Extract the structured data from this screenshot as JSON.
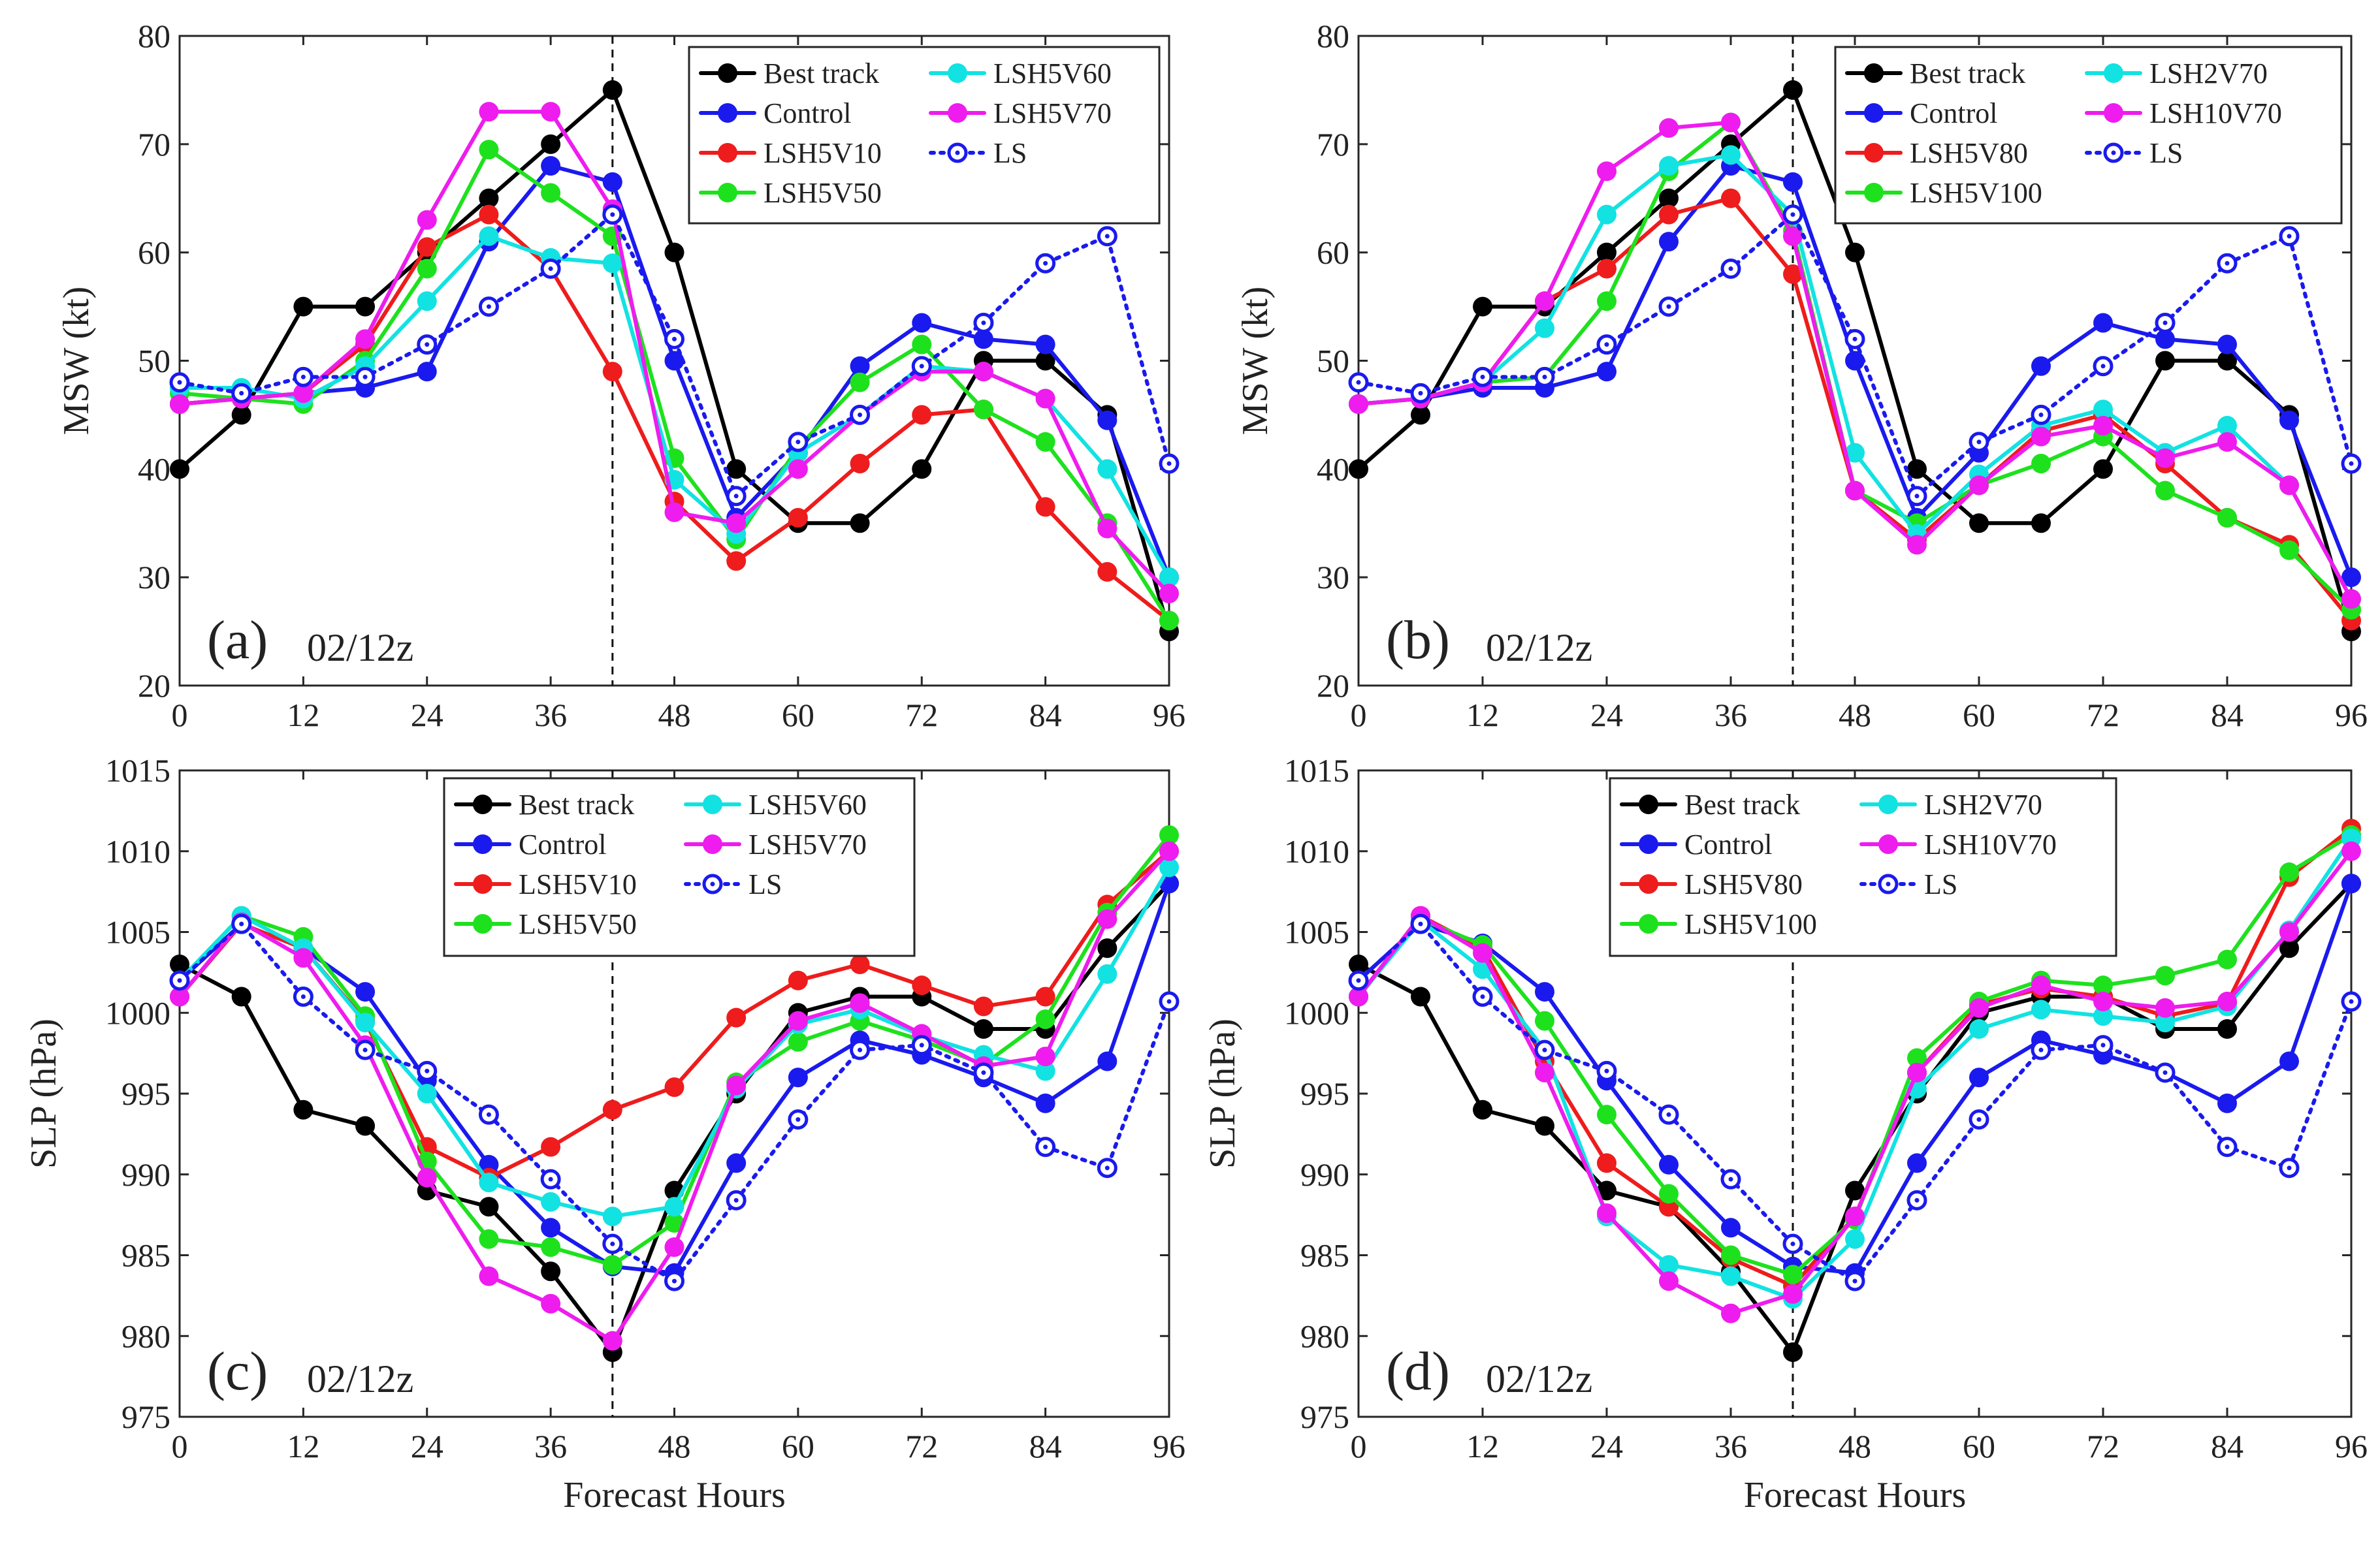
{
  "figure": {
    "xlabel": "Forecast Hours"
  },
  "chart_data": [
    {
      "type": "line",
      "id": "a",
      "panel_label": "(a)",
      "date_label": "02/12z",
      "ylabel": "MSW (kt)",
      "xlim": [
        0,
        96
      ],
      "ylim": [
        20,
        80
      ],
      "yticks": [
        20,
        30,
        40,
        50,
        60,
        70,
        80
      ],
      "xticks": [
        0,
        12,
        24,
        36,
        48,
        60,
        72,
        84,
        96
      ],
      "vline": 42,
      "legend_position": "top-right",
      "grid": false,
      "x": [
        0,
        6,
        12,
        18,
        24,
        30,
        36,
        42,
        48,
        54,
        60,
        66,
        72,
        78,
        84,
        90,
        96
      ],
      "series": [
        {
          "name": "Best track",
          "color": "#000000",
          "style": "solid",
          "values": [
            40,
            45,
            55,
            55,
            60,
            65,
            70,
            75,
            60,
            40,
            35,
            35,
            40,
            50,
            50,
            45,
            25
          ]
        },
        {
          "name": "Control",
          "color": "#1a1aee",
          "style": "solid",
          "values": [
            46,
            46.5,
            47,
            47.5,
            49,
            61,
            68,
            66.5,
            50,
            35.5,
            41.5,
            49.5,
            53.5,
            52,
            51.5,
            44.5,
            30
          ]
        },
        {
          "name": "LSH5V10",
          "color": "#ee1c1c",
          "style": "solid",
          "values": [
            46,
            46.5,
            47,
            51.5,
            60.5,
            63.5,
            58.5,
            49,
            37,
            31.5,
            35.5,
            40.5,
            45,
            45.5,
            36.5,
            30.5,
            26
          ]
        },
        {
          "name": "LSH5V50",
          "color": "#1ee11e",
          "style": "solid",
          "values": [
            47,
            46.5,
            46,
            50,
            58.5,
            69.5,
            65.5,
            61.5,
            41,
            33.5,
            42,
            48,
            51.5,
            45.5,
            42.5,
            35,
            26
          ]
        },
        {
          "name": "LSH5V60",
          "color": "#12e2e2",
          "style": "solid",
          "values": [
            47.5,
            47.5,
            46.5,
            49.5,
            55.5,
            61.5,
            59.5,
            59,
            39,
            34,
            41.5,
            45,
            49.5,
            49,
            46.5,
            40,
            30
          ]
        },
        {
          "name": "LSH5V70",
          "color": "#ee1cee",
          "style": "solid",
          "values": [
            46,
            46.5,
            47,
            52,
            63,
            73,
            73,
            64,
            36,
            35,
            40,
            45,
            49,
            49,
            46.5,
            34.5,
            28.5
          ]
        },
        {
          "name": "LS",
          "color": "#1a1aee",
          "style": "dotted",
          "values": [
            48,
            47,
            48.5,
            48.5,
            51.5,
            55,
            58.5,
            63.5,
            52,
            37.5,
            42.5,
            45,
            49.5,
            53.5,
            59,
            61.5,
            40.5
          ]
        }
      ]
    },
    {
      "type": "line",
      "id": "b",
      "panel_label": "(b)",
      "date_label": "02/12z",
      "ylabel": "MSW (kt)",
      "xlim": [
        0,
        96
      ],
      "ylim": [
        20,
        80
      ],
      "yticks": [
        20,
        30,
        40,
        50,
        60,
        70,
        80
      ],
      "xticks": [
        0,
        12,
        24,
        36,
        48,
        60,
        72,
        84,
        96
      ],
      "vline": 42,
      "legend_position": "top-right",
      "grid": false,
      "x": [
        0,
        6,
        12,
        18,
        24,
        30,
        36,
        42,
        48,
        54,
        60,
        66,
        72,
        78,
        84,
        90,
        96
      ],
      "series": [
        {
          "name": "Best track",
          "color": "#000000",
          "style": "solid",
          "values": [
            40,
            45,
            55,
            55,
            60,
            65,
            70,
            75,
            60,
            40,
            35,
            35,
            40,
            50,
            50,
            45,
            25
          ]
        },
        {
          "name": "Control",
          "color": "#1a1aee",
          "style": "solid",
          "values": [
            46,
            46.5,
            47.5,
            47.5,
            49,
            61,
            68,
            66.5,
            50,
            35.5,
            41.5,
            49.5,
            53.5,
            52,
            51.5,
            44.5,
            30
          ]
        },
        {
          "name": "LSH5V80",
          "color": "#ee1c1c",
          "style": "solid",
          "values": [
            46,
            46.5,
            48,
            55.5,
            58.5,
            63.5,
            65,
            58,
            38,
            33.5,
            38.5,
            43.5,
            45,
            40.5,
            35.5,
            33,
            26
          ]
        },
        {
          "name": "LSH5V100",
          "color": "#1ee11e",
          "style": "solid",
          "values": [
            46,
            46.5,
            48,
            48.5,
            55.5,
            67.5,
            72,
            62,
            38,
            35,
            38.5,
            40.5,
            43,
            38,
            35.5,
            32.5,
            27
          ]
        },
        {
          "name": "LSH2V70",
          "color": "#12e2e2",
          "style": "solid",
          "values": [
            46,
            46.5,
            48,
            53,
            63.5,
            68,
            69,
            63.5,
            41.5,
            34,
            39.5,
            44,
            45.5,
            41.5,
            44,
            38.5,
            28
          ]
        },
        {
          "name": "LSH10V70",
          "color": "#ee1cee",
          "style": "solid",
          "values": [
            46,
            46.5,
            48,
            55.5,
            67.5,
            71.5,
            72,
            61.5,
            38,
            33,
            38.5,
            43,
            44,
            41,
            42.5,
            38.5,
            28
          ]
        },
        {
          "name": "LS",
          "color": "#1a1aee",
          "style": "dotted",
          "values": [
            48,
            47,
            48.5,
            48.5,
            51.5,
            55,
            58.5,
            63.5,
            52,
            37.5,
            42.5,
            45,
            49.5,
            53.5,
            59,
            61.5,
            40.5
          ]
        }
      ]
    },
    {
      "type": "line",
      "id": "c",
      "panel_label": "(c)",
      "date_label": "02/12z",
      "ylabel": "SLP (hPa)",
      "xlabel": "Forecast Hours",
      "xlim": [
        0,
        96
      ],
      "ylim": [
        975,
        1015
      ],
      "yticks": [
        975,
        980,
        985,
        990,
        995,
        1000,
        1005,
        1010,
        1015
      ],
      "xticks": [
        0,
        12,
        24,
        36,
        48,
        60,
        72,
        84,
        96
      ],
      "vline": 42,
      "legend_position": "top-center",
      "grid": false,
      "x": [
        0,
        6,
        12,
        18,
        24,
        30,
        36,
        42,
        48,
        54,
        60,
        66,
        72,
        78,
        84,
        90,
        96
      ],
      "series": [
        {
          "name": "Best track",
          "color": "#000000",
          "style": "solid",
          "values": [
            1003,
            1001,
            994,
            993,
            989,
            988,
            984,
            979,
            989,
            995,
            1000,
            1001,
            1001,
            999,
            999,
            1004,
            1008
          ]
        },
        {
          "name": "Control",
          "color": "#1a1aee",
          "style": "solid",
          "values": [
            1002,
            1005.5,
            1004,
            1001.3,
            995.8,
            990.6,
            986.7,
            984.3,
            983.9,
            990.7,
            996,
            998.3,
            997.4,
            996,
            994.4,
            997,
            1008
          ]
        },
        {
          "name": "LSH5V10",
          "color": "#ee1c1c",
          "style": "solid",
          "values": [
            1001,
            1005.5,
            1004,
            999.5,
            991.7,
            989.8,
            991.7,
            994,
            995.4,
            999.7,
            1002,
            1003,
            1001.7,
            1000.4,
            1001,
            1006.7,
            1010
          ]
        },
        {
          "name": "LSH5V50",
          "color": "#1ee11e",
          "style": "solid",
          "values": [
            1002,
            1006,
            1004.7,
            999.8,
            990.8,
            986,
            985.5,
            984.4,
            987,
            995.7,
            998.2,
            999.5,
            998.3,
            996.8,
            999.6,
            1006.2,
            1011
          ]
        },
        {
          "name": "LSH5V60",
          "color": "#12e2e2",
          "style": "solid",
          "values": [
            1002,
            1006,
            1004,
            999.4,
            995,
            989.5,
            988.3,
            987.4,
            988,
            995.3,
            999.3,
            1000.2,
            998.6,
            997.4,
            996.4,
            1002.4,
            1009
          ]
        },
        {
          "name": "LSH5V70",
          "color": "#ee1cee",
          "style": "solid",
          "values": [
            1001,
            1005.6,
            1003.4,
            998,
            989.8,
            983.7,
            982,
            979.7,
            985.5,
            995.5,
            999.5,
            1000.6,
            998.7,
            996.7,
            997.3,
            1005.8,
            1010
          ]
        },
        {
          "name": "LS",
          "color": "#1a1aee",
          "style": "dotted",
          "values": [
            1002,
            1005.5,
            1001,
            997.7,
            996.4,
            993.7,
            989.7,
            985.7,
            983.4,
            988.4,
            993.4,
            997.7,
            998,
            996.3,
            991.7,
            990.4,
            1000.7
          ]
        }
      ]
    },
    {
      "type": "line",
      "id": "d",
      "panel_label": "(d)",
      "date_label": "02/12z",
      "ylabel": "SLP (hPa)",
      "xlabel": "Forecast Hours",
      "xlim": [
        0,
        96
      ],
      "ylim": [
        975,
        1015
      ],
      "yticks": [
        975,
        980,
        985,
        990,
        995,
        1000,
        1005,
        1010,
        1015
      ],
      "xticks": [
        0,
        12,
        24,
        36,
        48,
        60,
        72,
        84,
        96
      ],
      "vline": 42,
      "legend_position": "top-center",
      "grid": false,
      "x": [
        0,
        6,
        12,
        18,
        24,
        30,
        36,
        42,
        48,
        54,
        60,
        66,
        72,
        78,
        84,
        90,
        96
      ],
      "series": [
        {
          "name": "Best track",
          "color": "#000000",
          "style": "solid",
          "values": [
            1003,
            1001,
            994,
            993,
            989,
            988,
            984,
            979,
            989,
            995,
            1000,
            1001,
            1001,
            999,
            999,
            1004,
            1008
          ]
        },
        {
          "name": "Control",
          "color": "#1a1aee",
          "style": "solid",
          "values": [
            1002,
            1005.5,
            1004.3,
            1001.3,
            995.8,
            990.6,
            986.7,
            984.3,
            983.9,
            990.7,
            996,
            998.3,
            997.4,
            996.3,
            994.4,
            997,
            1008
          ]
        },
        {
          "name": "LSH5V80",
          "color": "#ee1c1c",
          "style": "solid",
          "values": [
            1001,
            1006,
            1004,
            997,
            990.7,
            988,
            984.8,
            983.1,
            987.4,
            996.3,
            1000.5,
            1001.5,
            1001,
            999.8,
            1000.6,
            1008.4,
            1011.4
          ]
        },
        {
          "name": "LSH5V100",
          "color": "#1ee11e",
          "style": "solid",
          "values": [
            1001,
            1005.8,
            1004.2,
            999.5,
            993.7,
            988.8,
            985,
            983.8,
            987.2,
            997.2,
            1000.7,
            1002,
            1001.7,
            1002.3,
            1003.3,
            1008.7,
            1011
          ]
        },
        {
          "name": "LSH2V70",
          "color": "#12e2e2",
          "style": "solid",
          "values": [
            1001,
            1005.7,
            1002.7,
            997.7,
            987.4,
            984.4,
            983.7,
            982.3,
            986,
            995.3,
            999,
            1000.2,
            999.8,
            999.4,
            1000.4,
            1005.1,
            1010.8
          ]
        },
        {
          "name": "LSH10V70",
          "color": "#ee1cee",
          "style": "solid",
          "values": [
            1001,
            1006,
            1003.7,
            996.3,
            987.6,
            983.4,
            981.4,
            982.6,
            987.4,
            996.3,
            1000.3,
            1001.7,
            1000.7,
            1000.3,
            1000.7,
            1005,
            1010
          ]
        },
        {
          "name": "LS",
          "color": "#1a1aee",
          "style": "dotted",
          "values": [
            1002,
            1005.5,
            1001,
            997.7,
            996.4,
            993.7,
            989.7,
            985.7,
            983.4,
            988.4,
            993.4,
            997.7,
            998,
            996.3,
            991.7,
            990.4,
            1000.7
          ]
        }
      ]
    }
  ]
}
